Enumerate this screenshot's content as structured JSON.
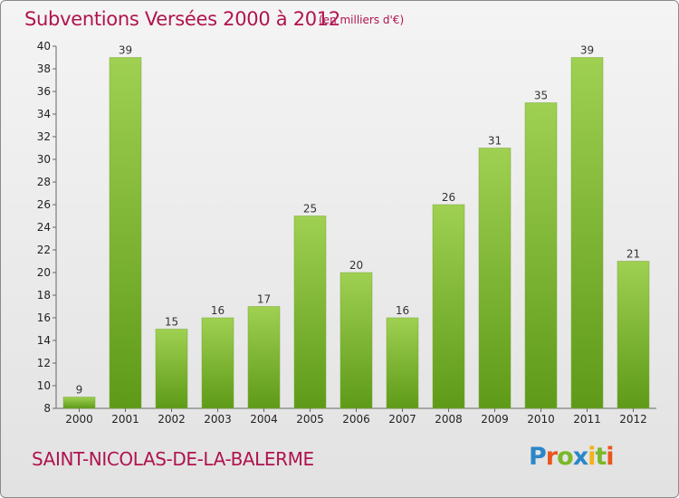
{
  "header": {
    "title": "Subventions Versées 2000 à 2012",
    "subtitle": "(en milliers d'€)"
  },
  "footer": {
    "commune": "SAINT-NICOLAS-DE-LA-BALERME",
    "logo_text": "Proxiti"
  },
  "colors": {
    "accent": "#b0134f",
    "bar_light": "#9fd052",
    "bar_dark": "#5e9a18",
    "background_top": "#f4f4f4",
    "background_bottom": "#e2e2e2"
  },
  "chart_data": {
    "type": "bar",
    "title": "Subventions Versées 2000 à 2012",
    "subtitle": "(en milliers d'€)",
    "xlabel": "",
    "ylabel": "",
    "categories": [
      "2000",
      "2001",
      "2002",
      "2003",
      "2004",
      "2005",
      "2006",
      "2007",
      "2008",
      "2009",
      "2010",
      "2011",
      "2012"
    ],
    "values": [
      9,
      39,
      15,
      16,
      17,
      25,
      20,
      16,
      26,
      31,
      35,
      39,
      21
    ],
    "ylim": [
      8,
      40
    ],
    "yticks": [
      8,
      10,
      12,
      14,
      16,
      18,
      20,
      22,
      24,
      26,
      28,
      30,
      32,
      34,
      36,
      38,
      40
    ],
    "grid": false,
    "legend": "none",
    "data_labels": true
  }
}
